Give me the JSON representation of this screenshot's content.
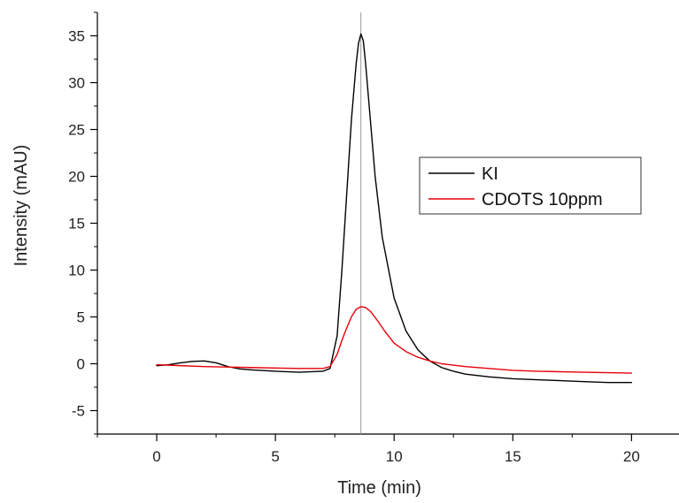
{
  "chart_data": {
    "type": "line",
    "title": "",
    "xlabel": "Time (min)",
    "ylabel": "Intensity (mAU)",
    "xlim": [
      -2.5,
      22
    ],
    "ylim": [
      -7.5,
      37.5
    ],
    "x_ticks": [
      0,
      5,
      10,
      15,
      20
    ],
    "y_ticks": [
      -5,
      0,
      5,
      10,
      15,
      20,
      25,
      30,
      35
    ],
    "tick_labels_x": [
      "0",
      "5",
      "10",
      "15",
      "20"
    ],
    "tick_labels_y": [
      "-5",
      "0",
      "5",
      "10",
      "15",
      "20",
      "25",
      "30",
      "35"
    ],
    "grid": false,
    "legend_position": "right",
    "reference_line_x": 8.6,
    "series": [
      {
        "name": "KI",
        "color": "#000000",
        "x": [
          0,
          0.5,
          1.0,
          1.5,
          2.0,
          2.5,
          3.0,
          3.5,
          4.0,
          5.0,
          6.0,
          7.0,
          7.3,
          7.6,
          7.8,
          8.0,
          8.2,
          8.4,
          8.5,
          8.6,
          8.7,
          8.8,
          9.0,
          9.2,
          9.5,
          10.0,
          10.5,
          11.0,
          11.5,
          12.0,
          12.5,
          13.0,
          14.0,
          15.0,
          16.0,
          17.0,
          18.0,
          19.0,
          20.0
        ],
        "y": [
          -0.2,
          -0.1,
          0.1,
          0.25,
          0.3,
          0.1,
          -0.3,
          -0.55,
          -0.65,
          -0.8,
          -0.9,
          -0.8,
          -0.5,
          3,
          10,
          18,
          26,
          32,
          34.2,
          35.2,
          34.5,
          32,
          26,
          20,
          13.5,
          7,
          3.5,
          1.5,
          0.3,
          -0.4,
          -0.8,
          -1.1,
          -1.4,
          -1.6,
          -1.7,
          -1.8,
          -1.9,
          -2.0,
          -2.0
        ]
      },
      {
        "name": "CDOTS 10ppm",
        "color": "#e8000b",
        "x": [
          0,
          1,
          2,
          3,
          4,
          5,
          6,
          7,
          7.3,
          7.6,
          7.8,
          8.0,
          8.2,
          8.4,
          8.6,
          8.8,
          9.0,
          9.3,
          9.6,
          10.0,
          10.5,
          11.0,
          11.5,
          12.0,
          13.0,
          14.0,
          15.0,
          16.0,
          17.0,
          18.0,
          19.0,
          20.0
        ],
        "y": [
          -0.1,
          -0.2,
          -0.3,
          -0.35,
          -0.4,
          -0.45,
          -0.5,
          -0.5,
          -0.3,
          1.0,
          2.5,
          3.8,
          5.0,
          5.8,
          6.1,
          6.0,
          5.6,
          4.6,
          3.5,
          2.2,
          1.3,
          0.7,
          0.3,
          0.0,
          -0.3,
          -0.5,
          -0.7,
          -0.8,
          -0.85,
          -0.9,
          -0.95,
          -1.0
        ]
      }
    ]
  }
}
